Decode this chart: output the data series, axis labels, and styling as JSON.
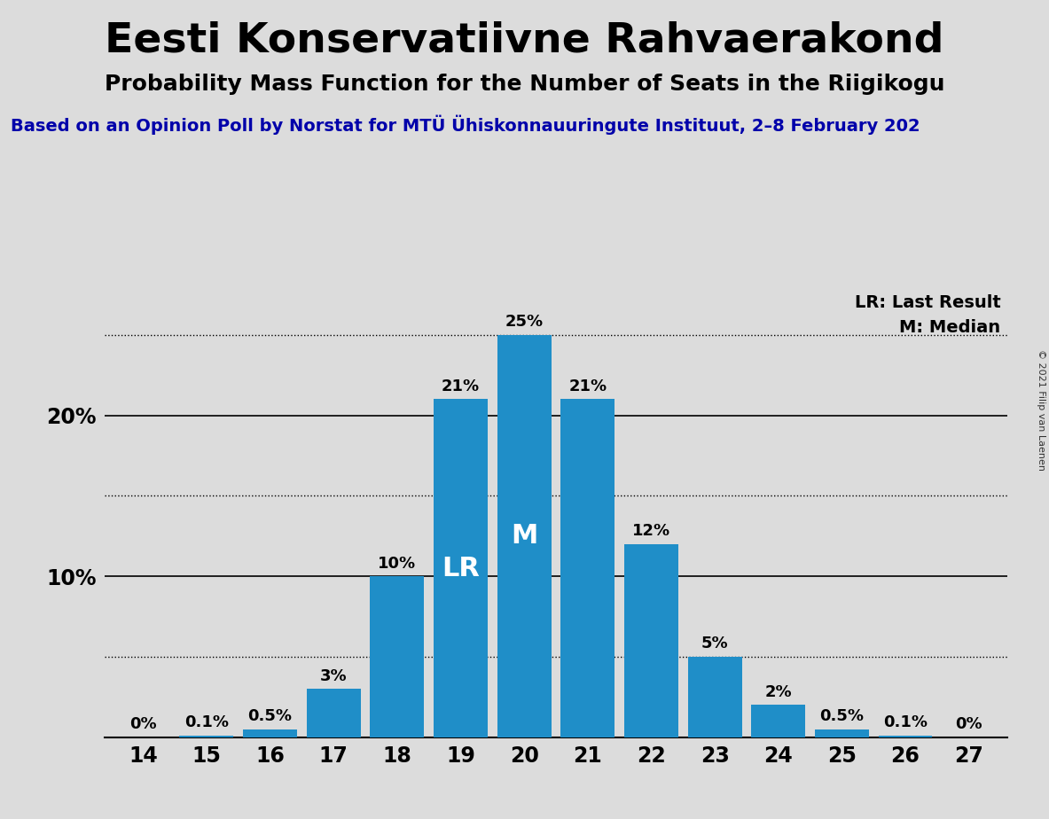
{
  "title": "Eesti Konservatiivne Rahvaerakond",
  "subtitle": "Probability Mass Function for the Number of Seats in the Riigikogu",
  "source_line": "Based on an Opinion Poll by Norstat for MTÜ Ühiskonnauuringute Instituut, 2–8 February 202",
  "copyright": "© 2021 Filip van Laenen",
  "seats": [
    14,
    15,
    16,
    17,
    18,
    19,
    20,
    21,
    22,
    23,
    24,
    25,
    26,
    27
  ],
  "probabilities": [
    0.0,
    0.1,
    0.5,
    3.0,
    10.0,
    21.0,
    25.0,
    21.0,
    12.0,
    5.0,
    2.0,
    0.5,
    0.1,
    0.0
  ],
  "bar_color": "#1f8ec8",
  "background_color": "#dcdcdc",
  "lr_seat": 19,
  "median_seat": 20,
  "lr_label": "LR",
  "median_label": "M",
  "legend_lr": "LR: Last Result",
  "legend_m": "M: Median",
  "ylim": [
    0,
    28
  ],
  "dotted_lines": [
    5.0,
    15.0,
    25.0
  ],
  "solid_lines": [
    10,
    20
  ],
  "bar_label_fontsize": 13,
  "title_fontsize": 34,
  "subtitle_fontsize": 18,
  "source_fontsize": 14,
  "tick_fontsize": 17,
  "legend_fontsize": 14,
  "inside_label_fontsize": 22
}
